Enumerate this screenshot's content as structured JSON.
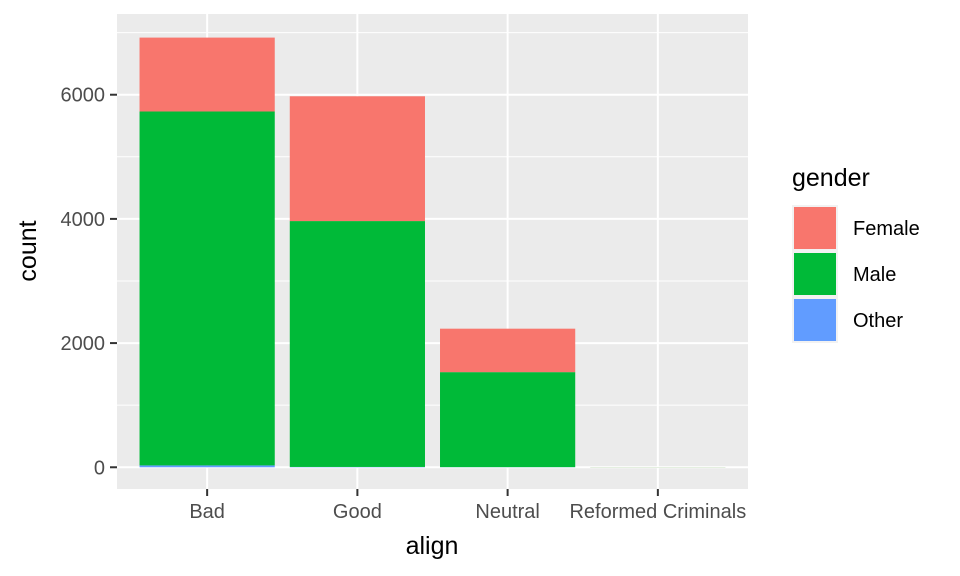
{
  "chart_data": {
    "type": "bar",
    "stacked": true,
    "categories": [
      "Bad",
      "Good",
      "Neutral",
      "Reformed Criminals"
    ],
    "series": [
      {
        "name": "Other",
        "color": "#619CFF",
        "values": [
          30,
          5,
          2,
          0
        ]
      },
      {
        "name": "Male",
        "color": "#00BA38",
        "values": [
          5700,
          3960,
          1530,
          2
        ]
      },
      {
        "name": "Female",
        "color": "#F8766D",
        "values": [
          1190,
          2010,
          700,
          1
        ]
      }
    ],
    "legend_order": [
      "Female",
      "Male",
      "Other"
    ],
    "xlabel": "align",
    "ylabel": "count",
    "legend_title": "gender",
    "ylim": [
      -350,
      7300
    ],
    "yticks": [
      0,
      2000,
      4000,
      6000
    ],
    "ytick_labels": [
      "0",
      "2000",
      "4000",
      "6000"
    ],
    "grid": true,
    "legend_position": "right"
  }
}
